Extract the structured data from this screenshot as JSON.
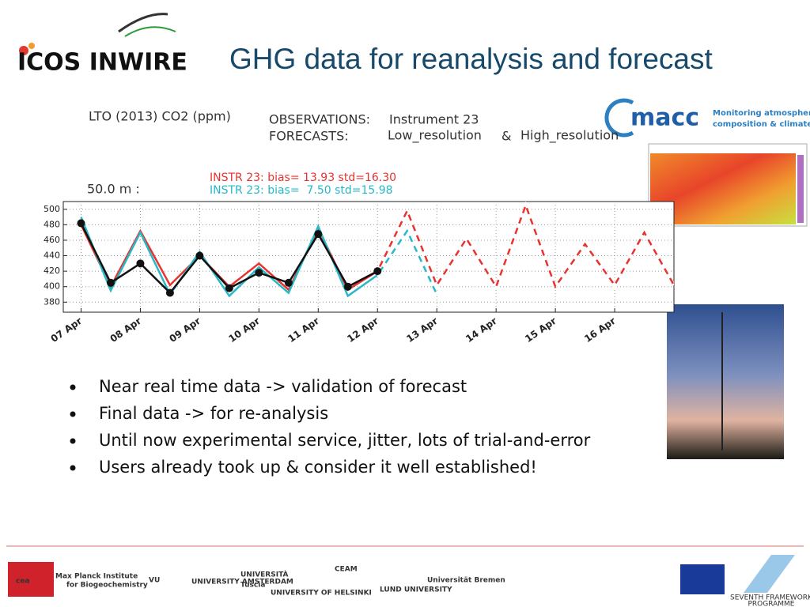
{
  "header": {
    "logo": "ICOS INWIRE",
    "title": "GHG data for reanalysis and forecast"
  },
  "macc": {
    "name": "macc",
    "tagline": [
      "Monitoring atmospheric",
      "composition & climate"
    ]
  },
  "chart_data": {
    "type": "line",
    "title": "LTO (2013) CO2 (ppm)",
    "subtitle": "50.0 m :",
    "legend_text": {
      "observations": "OBSERVATIONS:",
      "forecasts": "FORECASTS:",
      "and": "&"
    },
    "annotations": [
      {
        "text": "INSTR 23: bias= 13.93 std=16.30",
        "color": "#e8322f"
      },
      {
        "text": "INSTR 23: bias=  7.50 std=15.98",
        "color": "#28b8c8"
      }
    ],
    "x": [
      0,
      0.5,
      1,
      1.5,
      2,
      2.5,
      3,
      3.5,
      4,
      4.5,
      5,
      5.5,
      6,
      6.5,
      7,
      7.5,
      8,
      8.5,
      9,
      9.5,
      10
    ],
    "xlim": [
      -0.3,
      10
    ],
    "xticks": [
      {
        "value": 0,
        "label": "07 Apr"
      },
      {
        "value": 1,
        "label": "08 Apr"
      },
      {
        "value": 2,
        "label": "09 Apr"
      },
      {
        "value": 3,
        "label": "10 Apr"
      },
      {
        "value": 4,
        "label": "11 Apr"
      },
      {
        "value": 5,
        "label": "12 Apr"
      },
      {
        "value": 6,
        "label": "13 Apr"
      },
      {
        "value": 7,
        "label": "14 Apr"
      },
      {
        "value": 8,
        "label": "15 Apr"
      },
      {
        "value": 9,
        "label": "16 Apr"
      }
    ],
    "ylim": [
      367,
      510
    ],
    "yticks": [
      380,
      400,
      420,
      440,
      460,
      480,
      500
    ],
    "grid": true,
    "series": [
      {
        "name": "Instrument 23",
        "color": "#111111",
        "legend_color": "#333333",
        "values": [
          482,
          405,
          430,
          392,
          440,
          398,
          418,
          405,
          468,
          400,
          420,
          null,
          null,
          null,
          null,
          null,
          null,
          null,
          null,
          null,
          null
        ]
      },
      {
        "name": "Low_resolution",
        "color": "#28b8c8",
        "values": [
          490,
          395,
          470,
          390,
          445,
          388,
          425,
          392,
          478,
          388,
          415,
          472,
          390,
          null,
          null,
          null,
          null,
          null,
          null,
          null,
          null
        ]
      },
      {
        "name": "High_resolution",
        "color": "#e8322f",
        "values": [
          480,
          400,
          472,
          402,
          440,
          400,
          430,
          396,
          475,
          396,
          420,
          498,
          402,
          462,
          400,
          505,
          400,
          455,
          402,
          470,
          402
        ]
      }
    ]
  },
  "bullets": [
    "Near real time data -> validation of forecast",
    "Final data -> for re-analysis",
    "Until now experimental service, jitter, lots of trial-and-error",
    "Users already took up & consider it well established!"
  ],
  "footer": {
    "logos": [
      "cea",
      "Max Planck Institute",
      "for Biogeochemistry",
      "VU",
      "UNIVERSITY AMSTERDAM",
      "UNIVERSITÀ",
      "Tuscia",
      "UNIVERSITY OF HELSINKI",
      "CEAM",
      "LUND UNIVERSITY",
      "Universität Bremen"
    ],
    "programme": [
      "SEVENTH FRAMEWORK",
      "PROGRAMME"
    ]
  }
}
